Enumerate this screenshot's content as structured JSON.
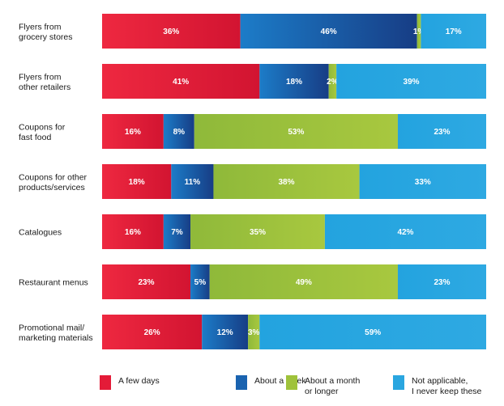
{
  "chart_data": {
    "type": "bar",
    "orientation": "horizontal",
    "stacked": true,
    "percent_stacked": true,
    "title": "",
    "xlabel": "",
    "ylabel": "",
    "xlim": [
      0,
      100
    ],
    "grid": false,
    "legend_position": "bottom",
    "categories": [
      [
        "Flyers from",
        "grocery stores"
      ],
      [
        "Flyers from",
        "other retailers"
      ],
      [
        "Coupons for",
        "fast food"
      ],
      [
        "Coupons for other",
        "products/services"
      ],
      [
        "Catalogues"
      ],
      [
        "Restaurant menus"
      ],
      [
        "Promotional mail/",
        "marketing materials"
      ]
    ],
    "series": [
      {
        "name": [
          "A few days"
        ],
        "color": "#e41b38",
        "values": [
          36,
          41,
          16,
          18,
          16,
          23,
          26
        ]
      },
      {
        "name": [
          "About a week"
        ],
        "color": "#1a63b0",
        "values": [
          46,
          18,
          8,
          11,
          7,
          5,
          12
        ]
      },
      {
        "name": [
          "About a month",
          "or longer"
        ],
        "color": "#9fc23b",
        "values": [
          1,
          2,
          53,
          38,
          35,
          49,
          3
        ]
      },
      {
        "name": [
          "Not applicable,",
          "I never keep these"
        ],
        "color": "#2aa6e0",
        "values": [
          17,
          39,
          23,
          33,
          42,
          23,
          59
        ]
      }
    ]
  }
}
